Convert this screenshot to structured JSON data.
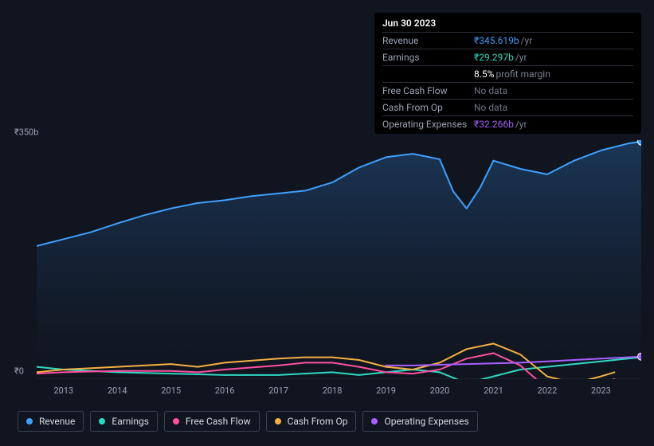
{
  "tooltip": {
    "date": "Jun 30 2023",
    "rows": [
      {
        "label": "Revenue",
        "value": "₹345.619b",
        "suffix": "/yr",
        "color": "#3ea0ff"
      },
      {
        "label": "Earnings",
        "value": "₹29.297b",
        "suffix": "/yr",
        "color": "#2ed9c3"
      },
      {
        "label": "",
        "value": "8.5%",
        "suffix": "profit margin",
        "color": "#ffffff",
        "is_margin": true
      },
      {
        "label": "Free Cash Flow",
        "value": "No data",
        "nodata": true
      },
      {
        "label": "Cash From Op",
        "value": "No data",
        "nodata": true
      },
      {
        "label": "Operating Expenses",
        "value": "₹32.266b",
        "suffix": "/yr",
        "color": "#a95eff"
      }
    ]
  },
  "chart": {
    "type": "line",
    "background_color": "#10151f",
    "plot_fill_top": "#13263f",
    "plot_fill_bottom": "#10151f",
    "axis_font_color": "#9ba3b4",
    "axis_font_size": 11,
    "y_ticks": [
      {
        "label": "₹350b",
        "v": 350
      },
      {
        "label": "₹0",
        "v": 0
      }
    ],
    "ylim": [
      0,
      350
    ],
    "x_labels": [
      "2013",
      "2014",
      "2015",
      "2016",
      "2017",
      "2018",
      "2019",
      "2020",
      "2021",
      "2022",
      "2023"
    ],
    "x_range": [
      2012.5,
      2023.75
    ],
    "series": [
      {
        "name": "Revenue",
        "color": "#3ea0ff",
        "width": 2,
        "fill": "rgba(62,160,255,0.15)",
        "data": [
          [
            2012.5,
            195
          ],
          [
            2013,
            205
          ],
          [
            2013.5,
            215
          ],
          [
            2014,
            228
          ],
          [
            2014.5,
            240
          ],
          [
            2015,
            250
          ],
          [
            2015.5,
            258
          ],
          [
            2016,
            262
          ],
          [
            2016.5,
            268
          ],
          [
            2017,
            272
          ],
          [
            2017.5,
            276
          ],
          [
            2018,
            288
          ],
          [
            2018.5,
            310
          ],
          [
            2019,
            325
          ],
          [
            2019.5,
            330
          ],
          [
            2020,
            322
          ],
          [
            2020.25,
            275
          ],
          [
            2020.5,
            250
          ],
          [
            2020.75,
            280
          ],
          [
            2021,
            320
          ],
          [
            2021.5,
            308
          ],
          [
            2022,
            300
          ],
          [
            2022.5,
            320
          ],
          [
            2023,
            335
          ],
          [
            2023.5,
            345
          ],
          [
            2023.75,
            348
          ]
        ],
        "end_marker": true
      },
      {
        "name": "Earnings",
        "color": "#2ed9c3",
        "width": 2,
        "data": [
          [
            2012.5,
            18
          ],
          [
            2013,
            14
          ],
          [
            2014,
            10
          ],
          [
            2015,
            8
          ],
          [
            2016,
            6
          ],
          [
            2017,
            6
          ],
          [
            2017.5,
            8
          ],
          [
            2018,
            10
          ],
          [
            2018.5,
            6
          ],
          [
            2019,
            10
          ],
          [
            2019.5,
            14
          ],
          [
            2020,
            10
          ],
          [
            2020.5,
            -6
          ],
          [
            2021,
            4
          ],
          [
            2021.5,
            14
          ],
          [
            2022,
            18
          ],
          [
            2022.5,
            22
          ],
          [
            2023,
            26
          ],
          [
            2023.5,
            30
          ],
          [
            2023.75,
            32
          ]
        ]
      },
      {
        "name": "Free Cash Flow",
        "color": "#ff4fa3",
        "width": 2,
        "data": [
          [
            2012.5,
            8
          ],
          [
            2013,
            10
          ],
          [
            2014,
            12
          ],
          [
            2015,
            12
          ],
          [
            2015.5,
            10
          ],
          [
            2016,
            14
          ],
          [
            2017,
            20
          ],
          [
            2017.5,
            24
          ],
          [
            2018,
            24
          ],
          [
            2018.5,
            18
          ],
          [
            2019,
            10
          ],
          [
            2019.5,
            8
          ],
          [
            2020,
            14
          ],
          [
            2020.5,
            30
          ],
          [
            2021,
            38
          ],
          [
            2021.5,
            20
          ],
          [
            2022,
            -14
          ],
          [
            2022.5,
            -18
          ],
          [
            2023,
            -6
          ],
          [
            2023.25,
            0
          ]
        ]
      },
      {
        "name": "Cash From Op",
        "color": "#f5b042",
        "width": 2,
        "data": [
          [
            2012.5,
            10
          ],
          [
            2013,
            14
          ],
          [
            2014,
            18
          ],
          [
            2015,
            22
          ],
          [
            2015.5,
            18
          ],
          [
            2016,
            24
          ],
          [
            2017,
            30
          ],
          [
            2017.5,
            32
          ],
          [
            2018,
            32
          ],
          [
            2018.5,
            28
          ],
          [
            2019,
            18
          ],
          [
            2019.5,
            14
          ],
          [
            2020,
            24
          ],
          [
            2020.5,
            44
          ],
          [
            2021,
            52
          ],
          [
            2021.5,
            36
          ],
          [
            2022,
            4
          ],
          [
            2022.5,
            -6
          ],
          [
            2023,
            4
          ],
          [
            2023.25,
            10
          ]
        ]
      },
      {
        "name": "Operating Expenses",
        "color": "#a95eff",
        "width": 2,
        "data": [
          [
            2019,
            20
          ],
          [
            2019.5,
            20
          ],
          [
            2020,
            21
          ],
          [
            2020.5,
            22
          ],
          [
            2021,
            23
          ],
          [
            2021.5,
            24
          ],
          [
            2022,
            26
          ],
          [
            2022.5,
            28
          ],
          [
            2023,
            30
          ],
          [
            2023.5,
            32
          ],
          [
            2023.75,
            33
          ]
        ],
        "end_marker": true
      }
    ]
  },
  "legend": {
    "border_color": "#3a4251",
    "text_color": "#d5dae3",
    "items": [
      {
        "label": "Revenue",
        "color": "#3ea0ff"
      },
      {
        "label": "Earnings",
        "color": "#2ed9c3"
      },
      {
        "label": "Free Cash Flow",
        "color": "#ff4fa3"
      },
      {
        "label": "Cash From Op",
        "color": "#f5b042"
      },
      {
        "label": "Operating Expenses",
        "color": "#a95eff"
      }
    ]
  }
}
